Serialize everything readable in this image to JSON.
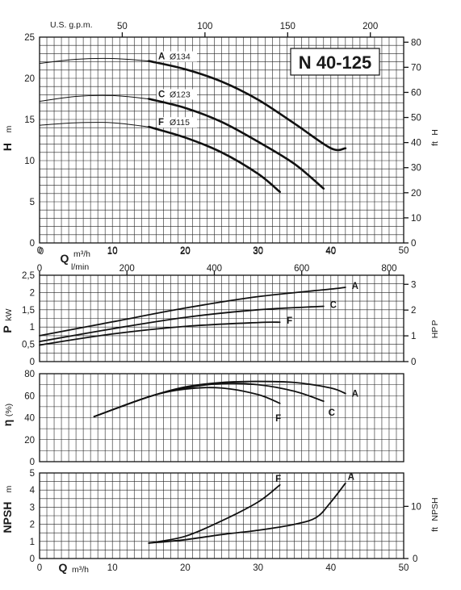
{
  "colors": {
    "line": "#111111",
    "grid": "#222222",
    "background": "#ffffff"
  },
  "chart_data": [
    {
      "type": "line",
      "panel": "head",
      "model": "N 40-125",
      "y_title": "H",
      "y_unit": "m",
      "y2_title": "H",
      "y2_unit": "ft",
      "x_title": "Q",
      "x_unit": "m³/h",
      "x_top_label": "U.S. g.p.m.",
      "xlim": [
        0,
        50
      ],
      "ylim": [
        0,
        25
      ],
      "x_ticks": [
        "0",
        "10",
        "20",
        "30",
        "40",
        "50"
      ],
      "y_ticks": [
        "0",
        "5",
        "10",
        "15",
        "20",
        "25"
      ],
      "y2_ticks": [
        "0",
        "10",
        "20",
        "30",
        "40",
        "50",
        "60",
        "70",
        "80"
      ],
      "y2_values": [
        0,
        10,
        20,
        30,
        40,
        50,
        60,
        70,
        80
      ],
      "y2_factor": 3.2808,
      "top_ticks": [
        "50",
        "100",
        "150",
        "200"
      ],
      "top_values": [
        50,
        100,
        150,
        200
      ],
      "top_factor": 0.22712,
      "grid": true,
      "series": [
        {
          "name": "A",
          "diameter": "Ø134",
          "bold_from": 15,
          "x": [
            0,
            5,
            10,
            15,
            20,
            25,
            30,
            35,
            40,
            42
          ],
          "y": [
            21.8,
            22.3,
            22.4,
            22.1,
            21.1,
            19.6,
            17.4,
            14.5,
            11.5,
            11.5
          ]
        },
        {
          "name": "C",
          "diameter": "Ø123",
          "bold_from": 15,
          "x": [
            0,
            5,
            10,
            15,
            20,
            25,
            30,
            35,
            39
          ],
          "y": [
            17.2,
            17.8,
            17.9,
            17.5,
            16.4,
            14.7,
            12.3,
            9.6,
            6.6
          ]
        },
        {
          "name": "F",
          "diameter": "Ø115",
          "bold_from": 15,
          "x": [
            0,
            5,
            10,
            15,
            20,
            25,
            30,
            33
          ],
          "y": [
            14.3,
            14.6,
            14.6,
            14.1,
            12.8,
            11.0,
            8.4,
            6.2
          ]
        }
      ]
    },
    {
      "type": "line",
      "panel": "power",
      "y_title": "P",
      "y_unit": "kW",
      "y2_title": "P",
      "y2_unit": "HP",
      "x_top_title": "Q",
      "x_top_unit": "m³/h",
      "x2_label": "l/min",
      "xlim": [
        0,
        50
      ],
      "ylim": [
        0,
        2.5
      ],
      "x_ticks": [
        "0",
        "10",
        "20",
        "30",
        "40",
        "50"
      ],
      "x2_ticks": [
        "0",
        "200",
        "400",
        "600",
        "800"
      ],
      "x2_values": [
        0,
        200,
        400,
        600,
        800
      ],
      "x2_factor": 16.667,
      "y_ticks": [
        "0",
        "0,5",
        "1",
        "1,5",
        "2",
        "2,5"
      ],
      "y_values": [
        0,
        0.5,
        1,
        1.5,
        2,
        2.5
      ],
      "y2_ticks": [
        "0",
        "1",
        "2",
        "3"
      ],
      "y2_values": [
        0,
        1,
        2,
        3
      ],
      "y2_factor": 1.341,
      "grid": true,
      "series": [
        {
          "name": "A",
          "x": [
            0,
            10,
            20,
            30,
            40,
            42
          ],
          "y": [
            0.75,
            1.15,
            1.55,
            1.88,
            2.1,
            2.15
          ]
        },
        {
          "name": "C",
          "x": [
            0,
            10,
            20,
            30,
            39
          ],
          "y": [
            0.58,
            0.95,
            1.28,
            1.5,
            1.6
          ]
        },
        {
          "name": "F",
          "x": [
            0,
            10,
            20,
            30,
            33
          ],
          "y": [
            0.48,
            0.8,
            1.02,
            1.13,
            1.14
          ]
        }
      ]
    },
    {
      "type": "line",
      "panel": "efficiency",
      "y_title": "η",
      "y_unit": "(%)",
      "xlim": [
        0,
        50
      ],
      "ylim": [
        0,
        80
      ],
      "y_ticks": [
        "0",
        "20",
        "40",
        "60",
        "80"
      ],
      "y_values": [
        0,
        20,
        40,
        60,
        80
      ],
      "grid": true,
      "series": [
        {
          "name": "A",
          "x": [
            7.5,
            15,
            20,
            25,
            30,
            35,
            40,
            42
          ],
          "y": [
            41,
            59,
            68,
            72,
            73,
            72,
            67,
            62
          ]
        },
        {
          "name": "C",
          "x": [
            7.5,
            15,
            20,
            25,
            30,
            35,
            39
          ],
          "y": [
            41,
            59,
            67,
            71,
            70,
            64,
            55
          ]
        },
        {
          "name": "F",
          "x": [
            7.5,
            15,
            20,
            25,
            30,
            33
          ],
          "y": [
            41,
            59,
            66,
            67,
            61,
            53
          ]
        }
      ]
    },
    {
      "type": "line",
      "panel": "npsh",
      "y_title": "NPSH",
      "y_unit": "m",
      "y2_title": "NPSH",
      "y2_unit": "ft",
      "x_title": "Q",
      "x_unit": "m³/h",
      "xlim": [
        0,
        50
      ],
      "ylim": [
        0,
        5
      ],
      "x_ticks": [
        "0",
        "10",
        "20",
        "30",
        "40",
        "50"
      ],
      "y_ticks": [
        "0",
        "1",
        "2",
        "3",
        "4",
        "5"
      ],
      "y2_ticks": [
        "0",
        "10"
      ],
      "y2_values": [
        0,
        10
      ],
      "y2_factor": 3.2808,
      "grid": true,
      "series": [
        {
          "name": "F",
          "x": [
            15,
            20,
            25,
            30,
            33
          ],
          "y": [
            0.9,
            1.3,
            2.2,
            3.3,
            4.3
          ]
        },
        {
          "name": "A",
          "x": [
            15,
            20,
            25,
            30,
            35,
            38,
            40,
            42
          ],
          "y": [
            0.9,
            1.1,
            1.4,
            1.65,
            2.0,
            2.4,
            3.3,
            4.4
          ]
        }
      ]
    }
  ]
}
